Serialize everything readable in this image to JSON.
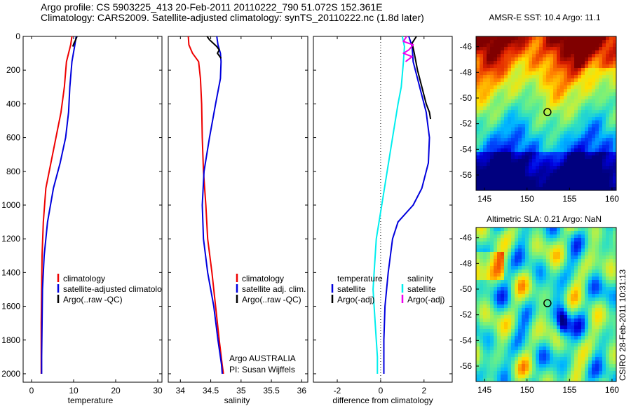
{
  "header": {
    "line1": "Argo profile: CS 5903225_413 20-Feb-2011 20110222_790 51.072S 152.361E",
    "line2": "Climatology: CARS2009. Satellite-adjusted climatology: synTS_20110222.nc (1.8d later)"
  },
  "side_stamp": "CSIRO 28-Feb-2011 10:31:13",
  "colors": {
    "red": "#ee0000",
    "blue": "#0000dd",
    "black": "#000000",
    "cyan": "#00eeee",
    "magenta": "#ee00ee"
  },
  "chart_data": [
    {
      "type": "line",
      "xlabel": "temperature",
      "ylim": [
        2050,
        0
      ],
      "xlim": [
        -2,
        31
      ],
      "xticks": [
        0,
        10,
        20,
        30
      ],
      "yticks": [
        0,
        200,
        400,
        600,
        800,
        1000,
        1200,
        1400,
        1600,
        1800,
        2000
      ],
      "series": [
        {
          "name": "climatology",
          "color": "red",
          "x": [
            9.6,
            9.3,
            8.3,
            7.8,
            7.0,
            5.8,
            4.6,
            3.4,
            2.8,
            2.5,
            2.4,
            2.3,
            2.3,
            2.3
          ],
          "y": [
            0,
            50,
            150,
            300,
            450,
            600,
            750,
            900,
            1100,
            1300,
            1500,
            1700,
            1900,
            2000
          ]
        },
        {
          "name": "satellite-adjusted climatology",
          "color": "blue",
          "x": [
            10.6,
            10.3,
            9.6,
            9.1,
            8.8,
            8.1,
            6.8,
            5.2,
            3.8,
            3.0,
            2.6,
            2.5,
            2.4,
            2.4
          ],
          "y": [
            0,
            50,
            150,
            300,
            450,
            600,
            750,
            900,
            1100,
            1300,
            1500,
            1700,
            1900,
            2000
          ]
        },
        {
          "name": "Argo(..raw -QC)",
          "color": "black",
          "x": [
            10.8,
            10.5,
            10.1,
            9.8
          ],
          "y": [
            0,
            20,
            40,
            60
          ]
        }
      ]
    },
    {
      "type": "line",
      "xlabel": "salinity",
      "ylim": [
        2050,
        0
      ],
      "xlim": [
        33.8,
        36.1
      ],
      "xticks": [
        34,
        34.5,
        35,
        35.5,
        36
      ],
      "yticks": [
        0,
        200,
        400,
        600,
        800,
        1000,
        1200,
        1400,
        1600,
        1800,
        2000
      ],
      "series": [
        {
          "name": "climatology",
          "color": "red",
          "x": [
            34.13,
            34.14,
            34.2,
            34.3,
            34.33,
            34.35,
            34.36,
            34.38,
            34.42,
            34.45,
            34.52,
            34.58,
            34.64,
            34.69,
            34.71
          ],
          "y": [
            0,
            50,
            100,
            150,
            250,
            400,
            600,
            800,
            1000,
            1200,
            1400,
            1600,
            1800,
            1950,
            2000
          ]
        },
        {
          "name": "satellite adj. clim.",
          "color": "blue",
          "x": [
            34.6,
            34.62,
            34.66,
            34.67,
            34.66,
            34.58,
            34.48,
            34.39,
            34.36,
            34.38,
            34.45,
            34.55,
            34.62,
            34.68,
            34.69
          ],
          "y": [
            0,
            50,
            100,
            150,
            250,
            400,
            600,
            800,
            1000,
            1200,
            1400,
            1600,
            1800,
            1950,
            2000
          ]
        },
        {
          "name": "Argo(..raw -QC)",
          "color": "black",
          "x": [
            34.44,
            34.48,
            34.54,
            34.6,
            34.64,
            34.61,
            34.67
          ],
          "y": [
            0,
            20,
            40,
            60,
            80,
            100,
            130
          ]
        }
      ]
    },
    {
      "type": "line",
      "xlabel": "difference from climatology",
      "ylim": [
        2050,
        0
      ],
      "xlim": [
        -3.1,
        3.3
      ],
      "xticks": [
        -2,
        0,
        2
      ],
      "yticks": [
        0,
        200,
        400,
        600,
        800,
        1000,
        1200,
        1400,
        1600,
        1800,
        2000
      ],
      "series": [
        {
          "name": "temperature satellite",
          "color": "blue",
          "x": [
            1.3,
            1.45,
            1.5,
            1.8,
            2.1,
            2.25,
            2.2,
            1.9,
            1.5,
            0.8,
            0.55,
            0.35,
            0.2,
            0.15,
            0.15
          ],
          "y": [
            0,
            60,
            150,
            300,
            450,
            600,
            750,
            900,
            1000,
            1100,
            1200,
            1400,
            1600,
            1800,
            2000
          ]
        },
        {
          "name": "temperature Argo(-adj)",
          "color": "black",
          "x": [
            1.65,
            1.45,
            1.55,
            1.7,
            1.9,
            2.1,
            2.25,
            2.3
          ],
          "y": [
            0,
            40,
            100,
            200,
            300,
            400,
            450,
            490
          ]
        },
        {
          "name": "salinity satellite",
          "color": "cyan",
          "x": [
            1.0,
            1.1,
            1.05,
            0.95,
            0.8,
            0.55,
            0.3,
            0.05,
            -0.2,
            -0.3,
            -0.35,
            -0.3,
            -0.2,
            -0.15,
            -0.15
          ],
          "y": [
            0,
            60,
            150,
            300,
            400,
            600,
            800,
            1000,
            1200,
            1400,
            1500,
            1600,
            1800,
            1900,
            2000
          ]
        },
        {
          "name": "salinity Argo(-adj)",
          "color": "magenta",
          "x": [
            1.2,
            1.05,
            1.5,
            1.3,
            1.05,
            1.45,
            1.15
          ],
          "y": [
            0,
            30,
            50,
            80,
            100,
            120,
            150
          ]
        }
      ]
    },
    {
      "type": "heatmap",
      "title": "AMSR-E SST: 10.4 Argo: 11.1",
      "xlim": [
        144,
        160.5
      ],
      "ylim": [
        -57.2,
        -45.2
      ],
      "xticks": [
        145,
        150,
        155,
        160
      ],
      "yticks": [
        -46,
        -48,
        -50,
        -52,
        -54,
        -56
      ],
      "palette": [
        "#00007f",
        "#0000e0",
        "#0050ff",
        "#00b8ff",
        "#30e0c0",
        "#70f080",
        "#c0f040",
        "#ffe000",
        "#ff8000",
        "#e02000",
        "#800000"
      ],
      "marker": {
        "x": 152.4,
        "y": -51.1
      }
    },
    {
      "type": "heatmap",
      "title": "Altimetric SLA: 0.21 Argo: NaN",
      "xlim": [
        144,
        160.5
      ],
      "ylim": [
        -57.2,
        -45.2
      ],
      "xticks": [
        145,
        150,
        155,
        160
      ],
      "yticks": [
        -46,
        -48,
        -50,
        -52,
        -54,
        -56
      ],
      "palette": [
        "#00007f",
        "#0000e0",
        "#0050ff",
        "#00b8ff",
        "#30e0c0",
        "#70f080",
        "#c0f040",
        "#ffe000",
        "#ff8000",
        "#e02000",
        "#800000"
      ],
      "marker": {
        "x": 152.4,
        "y": -51.1
      }
    }
  ],
  "legends": {
    "temp": [
      "climatology",
      "satellite-adjusted climatology",
      "Argo(..raw -QC)"
    ],
    "sal": [
      "climatology",
      "satellite adj. clim.",
      "Argo(..raw -QC)"
    ],
    "diff_left_title": "temperature",
    "diff_left": [
      "satellite",
      "Argo(-adj)"
    ],
    "diff_right_title": "salinity",
    "diff_right": [
      "satellite",
      "Argo(-adj)"
    ]
  },
  "annotation": {
    "line1": "Argo AUSTRALIA",
    "line2": "PI: Susan Wijffels"
  }
}
